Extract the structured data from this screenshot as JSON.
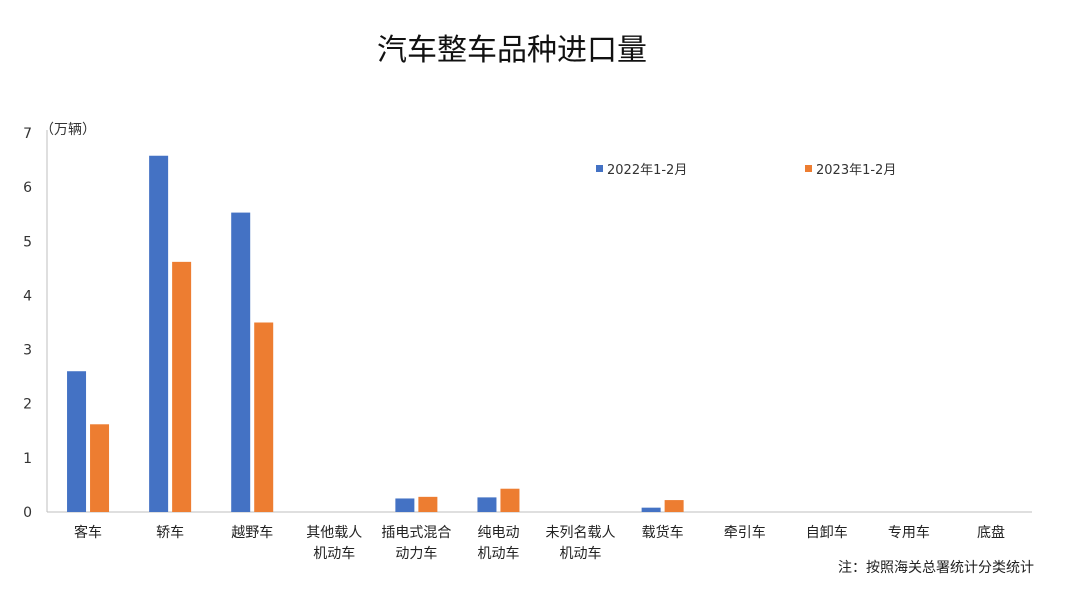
{
  "chart_data": {
    "type": "bar",
    "title": "汽车整车品种进口量",
    "ylabel": "（万辆）",
    "ylim": [
      0,
      7
    ],
    "yticks": [
      0,
      1,
      2,
      3,
      4,
      5,
      6,
      7
    ],
    "categories": [
      [
        "客车"
      ],
      [
        "轿车"
      ],
      [
        "越野车"
      ],
      [
        "其他载人",
        "机动车"
      ],
      [
        "插电式混合",
        "动力车"
      ],
      [
        "纯电动",
        "机动车"
      ],
      [
        "未列名载人",
        "机动车"
      ],
      [
        "载货车"
      ],
      [
        "牵引车"
      ],
      [
        "自卸车"
      ],
      [
        "专用车"
      ],
      [
        "底盘"
      ]
    ],
    "series": [
      {
        "name": "2022年1-2月",
        "color": "#4472C4",
        "values": [
          2.6,
          6.58,
          5.53,
          0,
          0.25,
          0.27,
          0,
          0.08,
          0,
          0,
          0,
          0
        ]
      },
      {
        "name": "2023年1-2月",
        "color": "#ED7D31",
        "values": [
          1.62,
          4.62,
          3.5,
          0,
          0.28,
          0.43,
          0,
          0.22,
          0,
          0,
          0,
          0
        ]
      }
    ],
    "legend_position": "top-right",
    "grid": false,
    "note": "注：按照海关总署统计分类统计"
  }
}
